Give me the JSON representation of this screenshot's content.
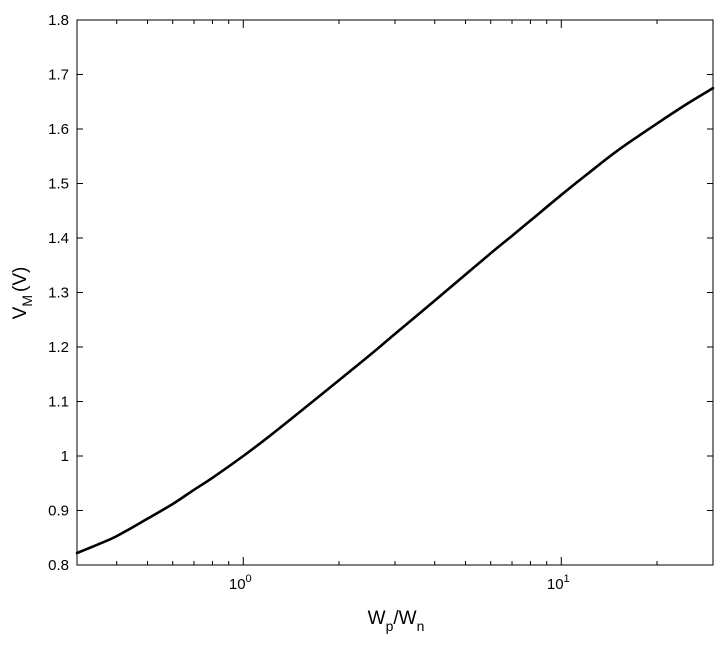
{
  "chart_data": {
    "type": "line",
    "title": "",
    "xlabel": "",
    "ylabel": "",
    "x_axis": {
      "scale": "log",
      "range": [
        0.3,
        30
      ],
      "major_ticks": [
        {
          "value": 1,
          "base": "10",
          "exponent": "0"
        },
        {
          "value": 10,
          "base": "10",
          "exponent": "1"
        }
      ],
      "minor_ticks": [
        0.3,
        0.4,
        0.5,
        0.6,
        0.7,
        0.8,
        0.9,
        2,
        3,
        4,
        5,
        6,
        7,
        8,
        9,
        20,
        30
      ],
      "label": {
        "main1": "W",
        "sub1": "p",
        "main2": "/W",
        "sub2": "n"
      }
    },
    "y_axis": {
      "scale": "linear",
      "range": [
        0.8,
        1.8
      ],
      "ticks": [
        0.8,
        0.9,
        1.0,
        1.1,
        1.2,
        1.3,
        1.4,
        1.5,
        1.6,
        1.7,
        1.8
      ],
      "tick_labels": [
        "0.8",
        "0.9",
        "1",
        "1.1",
        "1.2",
        "1.3",
        "1.4",
        "1.5",
        "1.6",
        "1.7",
        "1.8"
      ],
      "label": {
        "main": "V",
        "sub": "M",
        "unit": "(V)"
      }
    },
    "grid": false,
    "series": [
      {
        "color": "#000000",
        "x": [
          0.3,
          0.35,
          0.4,
          0.5,
          0.6,
          0.7,
          0.8,
          1.0,
          1.2,
          1.5,
          2.0,
          2.5,
          3.0,
          4.0,
          5.0,
          6.0,
          7.0,
          8.0,
          10.0,
          12.0,
          15.0,
          20.0,
          25.0,
          30.0
        ],
        "y": [
          0.822,
          0.838,
          0.853,
          0.885,
          0.912,
          0.938,
          0.96,
          1.0,
          1.035,
          1.08,
          1.139,
          1.185,
          1.224,
          1.285,
          1.333,
          1.372,
          1.404,
          1.432,
          1.479,
          1.516,
          1.56,
          1.61,
          1.647,
          1.675
        ]
      }
    ]
  }
}
